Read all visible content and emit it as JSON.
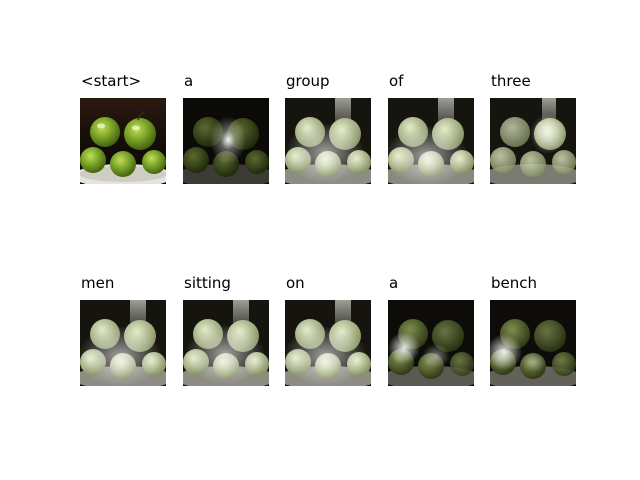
{
  "figure": {
    "panels": [
      {
        "word": "<start>",
        "attention": "none"
      },
      {
        "word": "a",
        "attention": "center"
      },
      {
        "word": "group",
        "attention": "diffuse"
      },
      {
        "word": "of",
        "attention": "diffuse"
      },
      {
        "word": "three",
        "attention": "diffuse"
      },
      {
        "word": "men",
        "attention": "diffuse"
      },
      {
        "word": "sitting",
        "attention": "diffuse"
      },
      {
        "word": "on",
        "attention": "diffuse"
      },
      {
        "word": "a",
        "attention": "left"
      },
      {
        "word": "bench",
        "attention": "left"
      }
    ]
  },
  "colors": {
    "apple": "#6f9a1e",
    "apple_highlight": "#c4dc5a",
    "bowl": "#e6e4dc",
    "background": "#0e0d0a"
  }
}
